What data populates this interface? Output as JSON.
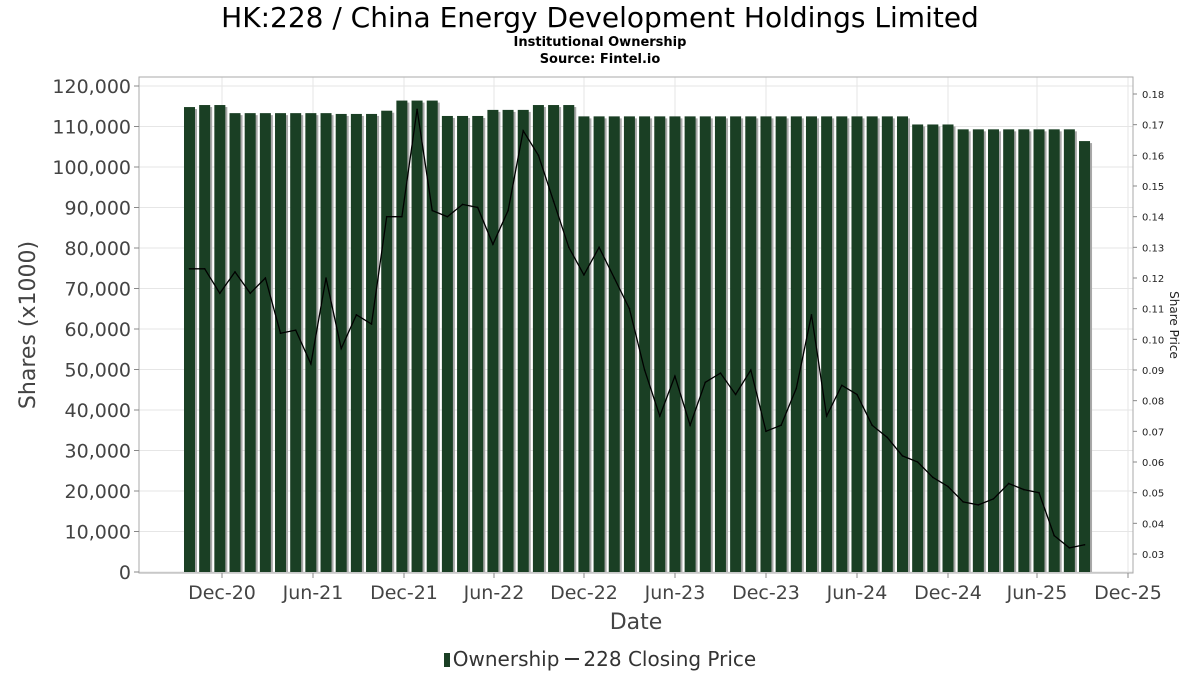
{
  "chart_data": {
    "type": "bar",
    "title": "HK:228 / China Energy Development Holdings Limited",
    "subtitle": "Institutional Ownership",
    "source": "Source: Fintel.io",
    "xlabel": "Date",
    "ylabel": "Shares (x1000)",
    "y2label": "Share Price",
    "ylim": [
      0,
      120000
    ],
    "y2lim": [
      0.026,
      0.184
    ],
    "yticks": [
      "0",
      "10,000",
      "20,000",
      "30,000",
      "40,000",
      "50,000",
      "60,000",
      "70,000",
      "80,000",
      "90,000",
      "100,000",
      "110,000",
      "120,000"
    ],
    "y2ticks": [
      "0.03",
      "0.04",
      "0.05",
      "0.06",
      "0.07",
      "0.08",
      "0.09",
      "0.10",
      "0.11",
      "0.12",
      "0.13",
      "0.14",
      "0.15",
      "0.16",
      "0.17",
      "0.18"
    ],
    "xticks": [
      "Dec-20",
      "Jun-21",
      "Dec-21",
      "Jun-22",
      "Dec-22",
      "Jun-23",
      "Dec-23",
      "Jun-24",
      "Dec-24",
      "Jun-25",
      "Dec-25"
    ],
    "grid": true,
    "legend_position": "bottom",
    "series": [
      {
        "name": "Ownership",
        "type": "bar",
        "color": "#1a3f24",
        "values": [
          114800,
          115300,
          115300,
          113300,
          113300,
          113300,
          113300,
          113300,
          113300,
          113300,
          113100,
          113100,
          113100,
          113900,
          116400,
          116400,
          116400,
          112600,
          112600,
          112600,
          114100,
          114100,
          114100,
          115300,
          115300,
          115300,
          112500,
          112500,
          112500,
          112500,
          112500,
          112500,
          112500,
          112500,
          112500,
          112500,
          112500,
          112500,
          112500,
          112500,
          112500,
          112500,
          112500,
          112500,
          112500,
          112500,
          112500,
          112500,
          110500,
          110500,
          110500,
          109300,
          109300,
          109300,
          109300,
          109300,
          109300,
          109300,
          109300,
          106400
        ]
      },
      {
        "name": "228 Closing Price",
        "type": "line",
        "color": "#000000",
        "values": [
          0.123,
          0.123,
          0.115,
          0.122,
          0.115,
          0.12,
          0.102,
          0.103,
          0.092,
          0.12,
          0.097,
          0.108,
          0.105,
          0.14,
          0.14,
          0.175,
          0.142,
          0.14,
          0.144,
          0.143,
          0.131,
          0.142,
          0.168,
          0.16,
          0.145,
          0.13,
          0.121,
          0.13,
          0.12,
          0.11,
          0.09,
          0.075,
          0.088,
          0.072,
          0.086,
          0.089,
          0.082,
          0.09,
          0.07,
          0.072,
          0.084,
          0.108,
          0.075,
          0.085,
          0.082,
          0.072,
          0.068,
          0.062,
          0.06,
          0.055,
          0.052,
          0.047,
          0.046,
          0.048,
          0.053,
          0.051,
          0.05,
          0.036,
          0.032,
          0.033
        ]
      }
    ]
  },
  "legend": {
    "ownership_label": "Ownership",
    "price_label": "228 Closing Price"
  }
}
